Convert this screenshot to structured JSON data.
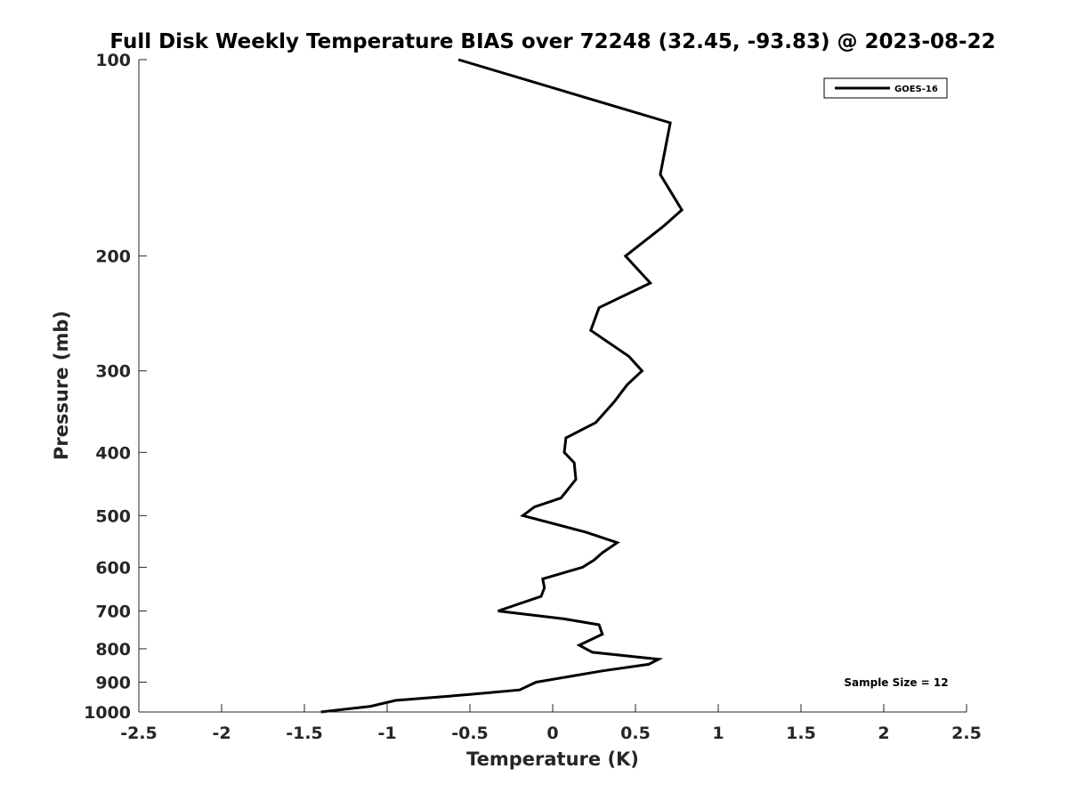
{
  "chart_data": {
    "type": "line",
    "title": "Full Disk Weekly Temperature BIAS over 72248 (32.45, -93.83) @ 2023-08-22",
    "xlabel": "Temperature (K)",
    "ylabel": "Pressure (mb)",
    "xlim": [
      -2.5,
      2.5
    ],
    "ylim": [
      1000,
      100
    ],
    "yscale": "log",
    "y_reversed": true,
    "grid": false,
    "legend_position": "top-right",
    "x_ticks": [
      -2.5,
      -2,
      -1.5,
      -1,
      -0.5,
      0,
      0.5,
      1,
      1.5,
      2,
      2.5
    ],
    "x_tick_labels": [
      "-2.5",
      "-2",
      "-1.5",
      "-1",
      "-0.5",
      "0",
      "0.5",
      "1",
      "1.5",
      "2",
      "2.5"
    ],
    "y_ticks": [
      100,
      200,
      300,
      400,
      500,
      600,
      700,
      800,
      900,
      1000
    ],
    "y_tick_labels": [
      "100",
      "200",
      "300",
      "400",
      "500",
      "600",
      "700",
      "800",
      "900",
      "1000"
    ],
    "series": [
      {
        "name": "GOES-16",
        "color": "#000000",
        "points": [
          {
            "x": -0.57,
            "y": 100
          },
          {
            "x": 0.71,
            "y": 125
          },
          {
            "x": 0.65,
            "y": 150
          },
          {
            "x": 0.78,
            "y": 170
          },
          {
            "x": 0.67,
            "y": 180
          },
          {
            "x": 0.44,
            "y": 200
          },
          {
            "x": 0.59,
            "y": 220
          },
          {
            "x": 0.28,
            "y": 240
          },
          {
            "x": 0.23,
            "y": 260
          },
          {
            "x": 0.46,
            "y": 285
          },
          {
            "x": 0.54,
            "y": 300
          },
          {
            "x": 0.45,
            "y": 315
          },
          {
            "x": 0.37,
            "y": 335
          },
          {
            "x": 0.26,
            "y": 360
          },
          {
            "x": 0.08,
            "y": 380
          },
          {
            "x": 0.07,
            "y": 400
          },
          {
            "x": 0.13,
            "y": 415
          },
          {
            "x": 0.14,
            "y": 440
          },
          {
            "x": 0.05,
            "y": 470
          },
          {
            "x": -0.11,
            "y": 485
          },
          {
            "x": -0.18,
            "y": 500
          },
          {
            "x": 0.2,
            "y": 530
          },
          {
            "x": 0.39,
            "y": 550
          },
          {
            "x": 0.3,
            "y": 570
          },
          {
            "x": 0.25,
            "y": 585
          },
          {
            "x": 0.18,
            "y": 600
          },
          {
            "x": -0.06,
            "y": 625
          },
          {
            "x": -0.05,
            "y": 645
          },
          {
            "x": -0.07,
            "y": 665
          },
          {
            "x": -0.33,
            "y": 700
          },
          {
            "x": 0.07,
            "y": 720
          },
          {
            "x": 0.28,
            "y": 735
          },
          {
            "x": 0.3,
            "y": 760
          },
          {
            "x": 0.16,
            "y": 790
          },
          {
            "x": 0.24,
            "y": 810
          },
          {
            "x": 0.64,
            "y": 830
          },
          {
            "x": 0.58,
            "y": 845
          },
          {
            "x": 0.3,
            "y": 865
          },
          {
            "x": -0.1,
            "y": 900
          },
          {
            "x": -0.2,
            "y": 925
          },
          {
            "x": -0.5,
            "y": 940
          },
          {
            "x": -0.95,
            "y": 960
          },
          {
            "x": -1.1,
            "y": 980
          },
          {
            "x": -1.4,
            "y": 1000
          }
        ]
      }
    ],
    "annotations": [
      "Sample Size = 12"
    ]
  }
}
